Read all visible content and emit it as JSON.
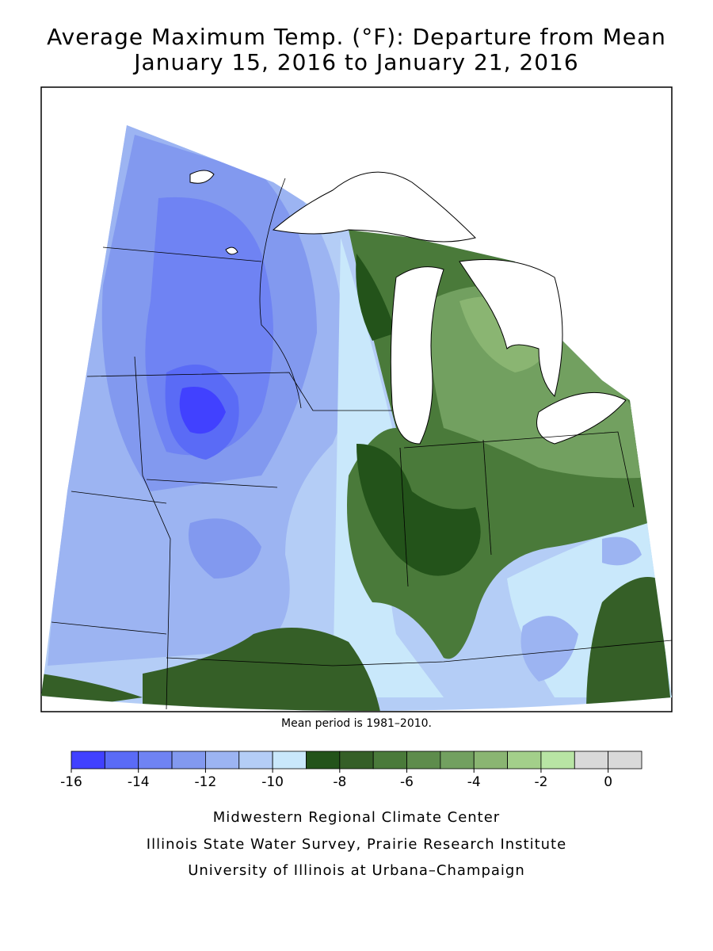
{
  "map": {
    "title": [
      "Average Maximum Temp. (°F): Departure from Mean",
      "January 15, 2016 to January 21, 2016"
    ],
    "note": "Mean period is 1981–2010.",
    "legend": {
      "bins": [
        -16,
        -15,
        -14,
        -13,
        -12,
        -11,
        -10,
        -9,
        -8,
        -7,
        -6,
        -5,
        -4,
        -3,
        -2,
        -1,
        0,
        1
      ],
      "colors": [
        "#4141ff",
        "#5a6bf6",
        "#6f83f3",
        "#8299ef",
        "#9cb4f2",
        "#b4cdf6",
        "#c9e8fb",
        "#23531a",
        "#355f27",
        "#4a7a3a",
        "#5e8c4c",
        "#72a060",
        "#8ab572",
        "#a3cf8a",
        "#b8e5a4",
        "#d9d9d9",
        "#d9d9d9"
      ],
      "ticks": [
        -16,
        -14,
        -12,
        -10,
        -8,
        -6,
        -4,
        -2,
        0
      ]
    },
    "credits": [
      "Midwestern Regional Climate Center",
      "Illinois State Water Survey, Prairie Research Institute",
      "University of Illinois at Urbana–Champaign"
    ]
  }
}
